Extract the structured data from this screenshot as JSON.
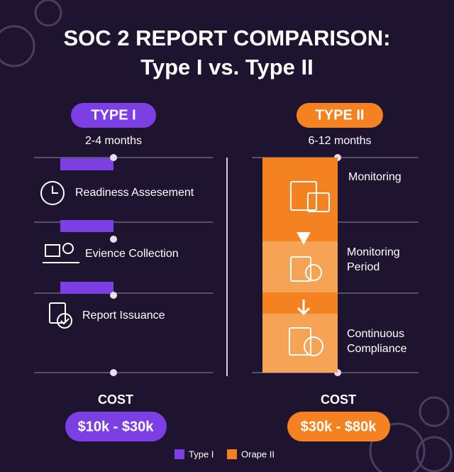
{
  "header": {
    "title_line1": "SOC 2 REPORT COMPARISON:",
    "title_line2": "Type I vs. Type II"
  },
  "type1": {
    "badge": "TYPE I",
    "duration": "2-4 months",
    "steps": [
      "Readiness Assesement",
      "Evience Collection",
      "Report Issuance"
    ],
    "cost_label": "COST",
    "cost": "$10k - $30k"
  },
  "type2": {
    "badge": "TYPE II",
    "duration": "6-12 months",
    "steps": [
      "Monitoring",
      "Monitoring Period",
      "Continuous Compliance"
    ],
    "cost_label": "COST",
    "cost": "$30k - $80k"
  },
  "legend": [
    "Type I",
    "Orape II"
  ]
}
